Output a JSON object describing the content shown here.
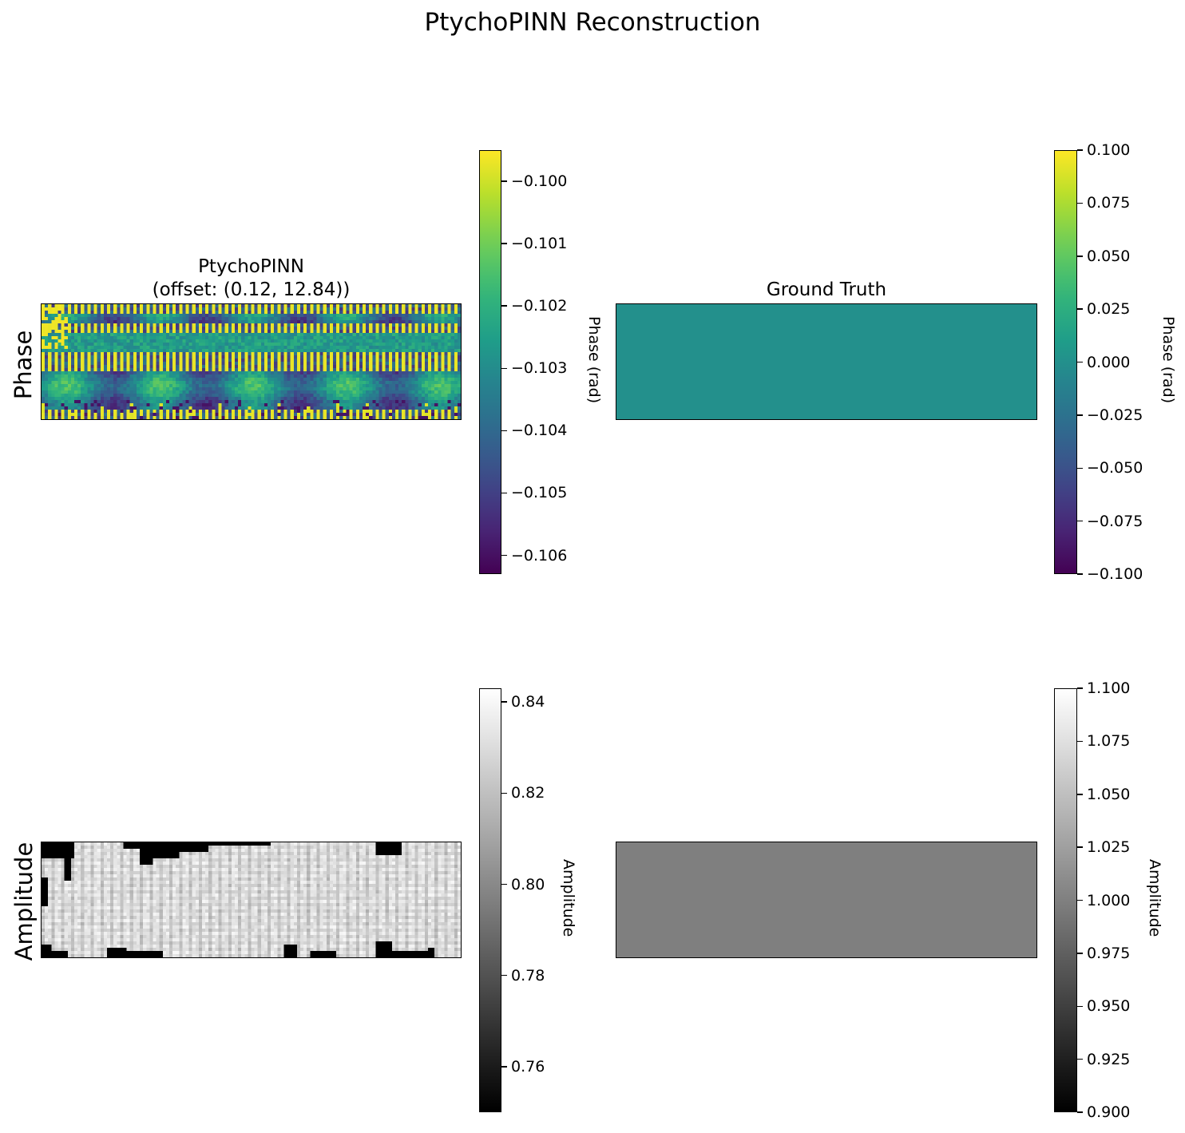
{
  "figure": {
    "title": "PtychoPINN Reconstruction"
  },
  "row_labels": {
    "phase": "Phase",
    "amplitude": "Amplitude"
  },
  "chart_data": [
    {
      "type": "heatmap",
      "title": "PtychoPINN\n(offset: (0.12, 12.84))",
      "row": "Phase",
      "colormap": "viridis",
      "grid": false,
      "colorbar": {
        "label": "Phase (rad)",
        "range": [
          -0.1063,
          -0.0995
        ],
        "ticks": [
          -0.1,
          -0.101,
          -0.102,
          -0.103,
          -0.104,
          -0.105,
          -0.106
        ],
        "tick_labels": [
          "−0.100",
          "−0.101",
          "−0.102",
          "−0.103",
          "−0.104",
          "−0.105",
          "−0.106"
        ]
      }
    },
    {
      "type": "heatmap",
      "title": "Ground Truth",
      "row": "Phase",
      "colormap": "viridis",
      "grid": false,
      "uniform_value": 0.0,
      "colorbar": {
        "label": "Phase (rad)",
        "range": [
          -0.1,
          0.1
        ],
        "ticks": [
          0.1,
          0.075,
          0.05,
          0.025,
          0.0,
          -0.025,
          -0.05,
          -0.075,
          -0.1
        ],
        "tick_labels": [
          "0.100",
          "0.075",
          "0.050",
          "0.025",
          "0.000",
          "−0.025",
          "−0.050",
          "−0.075",
          "−0.100"
        ]
      }
    },
    {
      "type": "heatmap",
      "title": "",
      "row": "Amplitude",
      "colormap": "gray",
      "grid": false,
      "colorbar": {
        "label": "Amplitude",
        "range": [
          0.75,
          0.843
        ],
        "ticks": [
          0.84,
          0.82,
          0.8,
          0.78,
          0.76
        ],
        "tick_labels": [
          "0.84",
          "0.82",
          "0.80",
          "0.78",
          "0.76"
        ]
      }
    },
    {
      "type": "heatmap",
      "title": "",
      "row": "Amplitude",
      "colormap": "gray",
      "grid": false,
      "uniform_value": 1.0,
      "colorbar": {
        "label": "Amplitude",
        "range": [
          0.9,
          1.1
        ],
        "ticks": [
          1.1,
          1.075,
          1.05,
          1.025,
          1.0,
          0.975,
          0.95,
          0.925,
          0.9
        ],
        "tick_labels": [
          "1.100",
          "1.075",
          "1.050",
          "1.025",
          "1.000",
          "0.975",
          "0.950",
          "0.925",
          "0.900"
        ]
      }
    }
  ]
}
